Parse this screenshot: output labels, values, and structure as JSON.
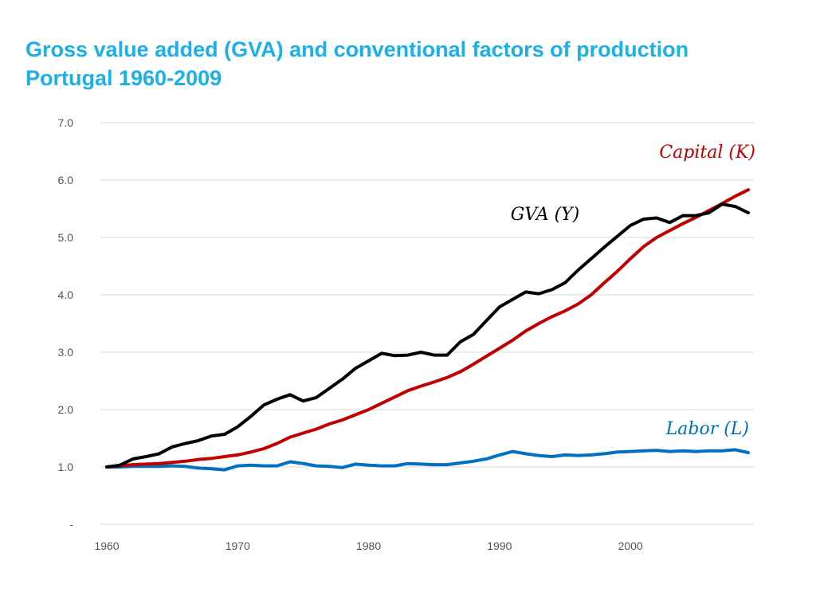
{
  "title": {
    "line1": "Gross value added (GVA) and conventional factors of production",
    "line2": "Portugal 1960-2009"
  },
  "colors": {
    "title": "#1ab0e8",
    "gva": "#000000",
    "capital": "#c00000",
    "labor": "#0070c0",
    "grid": "#d9d9d9"
  },
  "chart_data": {
    "type": "line",
    "title": "Gross value added (GVA) and conventional factors of production Portugal 1960-2009",
    "xlabel": "",
    "ylabel": "",
    "xlim": [
      1960,
      2009
    ],
    "ylim": [
      0,
      7
    ],
    "grid": true,
    "x_ticks": [
      1960,
      1970,
      1980,
      1990,
      2000
    ],
    "x_tick_labels": [
      "1960",
      "1970",
      "1980",
      "1990",
      "2000"
    ],
    "y_ticks": [
      0,
      1,
      2,
      3,
      4,
      5,
      6,
      7
    ],
    "y_tick_labels": [
      "-",
      "1.0",
      "2.0",
      "3.0",
      "4.0",
      "5.0",
      "6.0",
      "7.0"
    ],
    "x": [
      1960,
      1961,
      1962,
      1963,
      1964,
      1965,
      1966,
      1967,
      1968,
      1969,
      1970,
      1971,
      1972,
      1973,
      1974,
      1975,
      1976,
      1977,
      1978,
      1979,
      1980,
      1981,
      1982,
      1983,
      1984,
      1985,
      1986,
      1987,
      1988,
      1989,
      1990,
      1991,
      1992,
      1993,
      1994,
      1995,
      1996,
      1997,
      1998,
      1999,
      2000,
      2001,
      2002,
      2003,
      2004,
      2005,
      2006,
      2007,
      2008,
      2009
    ],
    "series": [
      {
        "name": "GVA (Y)",
        "label": "GVA (Y)",
        "color": "#000000",
        "values": [
          1.0,
          1.03,
          1.14,
          1.18,
          1.23,
          1.35,
          1.41,
          1.46,
          1.54,
          1.57,
          1.7,
          1.88,
          2.08,
          2.18,
          2.26,
          2.15,
          2.21,
          2.37,
          2.53,
          2.72,
          2.85,
          2.98,
          2.94,
          2.95,
          3.0,
          2.95,
          2.95,
          3.18,
          3.31,
          3.55,
          3.79,
          3.92,
          4.05,
          4.02,
          4.09,
          4.21,
          4.43,
          4.63,
          4.83,
          5.02,
          5.21,
          5.32,
          5.34,
          5.26,
          5.38,
          5.38,
          5.43,
          5.58,
          5.54,
          5.43
        ]
      },
      {
        "name": "Capital (K)",
        "label": "Capital (K)",
        "color": "#c00000",
        "values": [
          1.0,
          1.02,
          1.04,
          1.05,
          1.06,
          1.08,
          1.1,
          1.13,
          1.15,
          1.18,
          1.21,
          1.26,
          1.32,
          1.41,
          1.52,
          1.59,
          1.66,
          1.75,
          1.82,
          1.91,
          2.0,
          2.11,
          2.22,
          2.33,
          2.41,
          2.48,
          2.56,
          2.66,
          2.79,
          2.93,
          3.07,
          3.21,
          3.37,
          3.5,
          3.62,
          3.72,
          3.84,
          4.0,
          4.21,
          4.41,
          4.63,
          4.84,
          5.0,
          5.12,
          5.24,
          5.35,
          5.47,
          5.59,
          5.72,
          5.83
        ]
      },
      {
        "name": "Labor (L)",
        "label": "Labor (L)",
        "color": "#0070c0",
        "values": [
          1.0,
          1.0,
          1.01,
          1.01,
          1.01,
          1.02,
          1.01,
          0.98,
          0.97,
          0.95,
          1.02,
          1.03,
          1.02,
          1.02,
          1.09,
          1.06,
          1.02,
          1.01,
          0.99,
          1.05,
          1.03,
          1.02,
          1.02,
          1.06,
          1.05,
          1.04,
          1.04,
          1.07,
          1.1,
          1.14,
          1.21,
          1.27,
          1.23,
          1.2,
          1.18,
          1.21,
          1.2,
          1.21,
          1.23,
          1.26,
          1.27,
          1.28,
          1.29,
          1.27,
          1.28,
          1.27,
          1.28,
          1.28,
          1.3,
          1.25
        ]
      }
    ]
  }
}
